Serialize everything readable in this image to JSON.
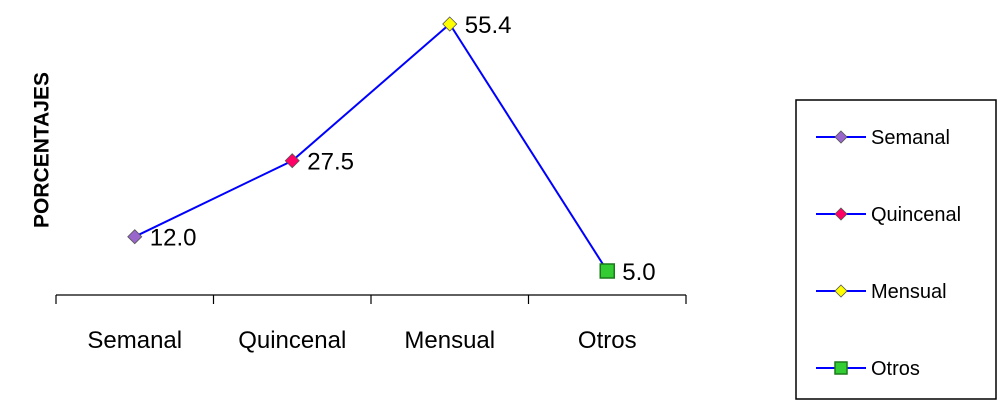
{
  "chart_data": {
    "type": "line",
    "ylabel": "PORCENTAJES",
    "xlabel": "",
    "categories": [
      "Semanal",
      "Quincenal",
      "Mensual",
      "Otros"
    ],
    "values": [
      12.0,
      27.5,
      55.4,
      5.0
    ],
    "value_labels": [
      "12.0",
      "27.5",
      "55.4",
      "5.0"
    ],
    "ylim": [
      0,
      55.4
    ],
    "grid": false,
    "line_color": "#0000ff",
    "point_markers": [
      {
        "category": "Semanal",
        "shape": "diamond",
        "color": "#9966cc"
      },
      {
        "category": "Quincenal",
        "shape": "diamond",
        "color": "#ff0066"
      },
      {
        "category": "Mensual",
        "shape": "diamond",
        "color": "#ffff00"
      },
      {
        "category": "Otros",
        "shape": "square",
        "color": "#33cc33"
      }
    ],
    "legend": {
      "placement": "right",
      "entries": [
        "Semanal",
        "Quincenal",
        "Mensual",
        "Otros"
      ]
    }
  }
}
